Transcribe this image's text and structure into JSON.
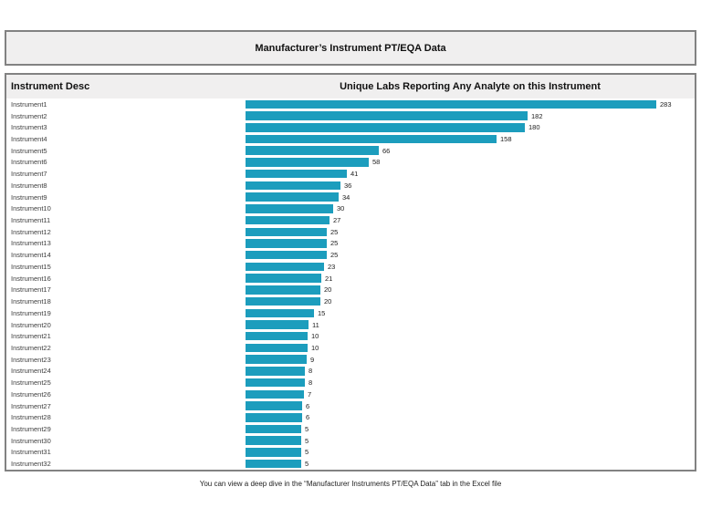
{
  "title": "Manufacturer’s Instrument PT/EQA Data",
  "table": {
    "col1_header": "Instrument Desc",
    "col2_header": "Unique Labs Reporting Any Analyte on this Instrument"
  },
  "chart_data": {
    "type": "bar",
    "orientation": "horizontal",
    "title": "Manufacturer’s Instrument PT/EQA Data",
    "xlabel": "Unique Labs Reporting Any Analyte on this Instrument",
    "ylabel": "Instrument Desc",
    "bar_color": "#1C9DBD",
    "data_labels": true,
    "grid": false,
    "legend": false,
    "categories": [
      "Instrument1",
      "Instrument2",
      "Instrument3",
      "Instrument4",
      "Instrument5",
      "Instrument6",
      "Instrument7",
      "Instrument8",
      "Instrument9",
      "Instrument10",
      "Instrument11",
      "Instrument12",
      "Instrument13",
      "Instrument14",
      "Instrument15",
      "Instrument16",
      "Instrument17",
      "Instrument18",
      "Instrument19",
      "Instrument20",
      "Instrument21",
      "Instrument22",
      "Instrument23",
      "Instrument24",
      "Instrument25",
      "Instrument26",
      "Instrument27",
      "Instrument28",
      "Instrument29",
      "Instrument30",
      "Instrument31",
      "Instrument32"
    ],
    "values": [
      283,
      182,
      180,
      158,
      66,
      58,
      41,
      36,
      34,
      30,
      27,
      25,
      25,
      25,
      23,
      21,
      20,
      20,
      15,
      11,
      10,
      10,
      9,
      8,
      8,
      7,
      6,
      6,
      5,
      5,
      5,
      5
    ]
  },
  "footer_note": "You can view a deep dive in the “Manufacturer Instruments PT/EQA Data” tab in the Excel file"
}
